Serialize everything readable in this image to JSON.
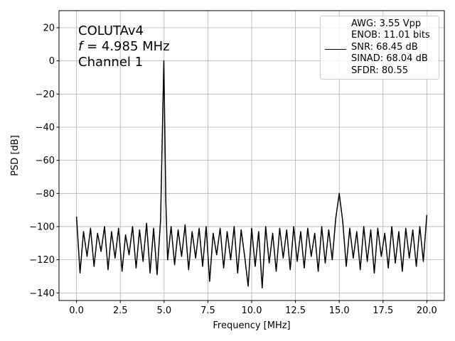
{
  "chart_data": {
    "type": "line",
    "annotation": [
      "COLUTAv4",
      "f",
      " = 4.985 MHz",
      "Channel 1"
    ],
    "xlabel": "Frequency [MHz]",
    "ylabel": "PSD [dB]",
    "xlim": [
      -1,
      21
    ],
    "ylim": [
      -144.6,
      30.3
    ],
    "xticks": [
      {
        "value": 0,
        "label": "0.0"
      },
      2.5,
      {
        "value": 5,
        "label": "5.0"
      },
      7.5,
      {
        "value": 10,
        "label": "10.0"
      },
      12.5,
      {
        "value": 15,
        "label": "15.0"
      },
      17.5,
      {
        "value": 20,
        "label": "20.0"
      }
    ],
    "yticks": [
      {
        "value": -140,
        "label": "−140"
      },
      {
        "value": -120,
        "label": "−120"
      },
      {
        "value": -100,
        "label": "−100"
      },
      {
        "value": -80,
        "label": "−80"
      },
      {
        "value": -60,
        "label": "−60"
      },
      {
        "value": -40,
        "label": "−40"
      },
      {
        "value": -20,
        "label": "−20"
      },
      0,
      20
    ],
    "grid": true,
    "legend": "upper right",
    "x": [
      0,
      0.2,
      0.4,
      0.6,
      0.8,
      1,
      1.2,
      1.4,
      1.6,
      1.8,
      2,
      2.2,
      2.4,
      2.6,
      2.8,
      3,
      3.2,
      3.4,
      3.6,
      3.8,
      4,
      4.2,
      4.4,
      4.6,
      4.8,
      4.985,
      5.1,
      5.2,
      5.4,
      5.6,
      5.8,
      6,
      6.2,
      6.4,
      6.6,
      6.8,
      7,
      7.2,
      7.4,
      7.6,
      7.8,
      8,
      8.2,
      8.4,
      8.6,
      8.8,
      9,
      9.2,
      9.4,
      9.6,
      9.8,
      10,
      10.2,
      10.4,
      10.6,
      10.8,
      11,
      11.2,
      11.4,
      11.6,
      11.8,
      12,
      12.2,
      12.4,
      12.6,
      12.8,
      13,
      13.2,
      13.4,
      13.6,
      13.8,
      14,
      14.2,
      14.4,
      14.6,
      14.8,
      15,
      15.2,
      15.4,
      15.6,
      15.8,
      16,
      16.2,
      16.4,
      16.6,
      16.8,
      17,
      17.2,
      17.4,
      17.6,
      17.8,
      18,
      18.2,
      18.4,
      18.6,
      18.8,
      19,
      19.2,
      19.4,
      19.6,
      19.8,
      20
    ],
    "series": [
      {
        "name": "AWG: 3.55 Vpp\nENOB: 11.01 bits\nSNR: 68.45 dB\nSINAD: 68.04 dB\nSFDR: 80.55",
        "color": "#000000",
        "values": [
          -94,
          -128,
          -103,
          -118,
          -101,
          -124,
          -104,
          -115,
          -100,
          -126,
          -103,
          -119,
          -101,
          -127,
          -105,
          -117,
          -100,
          -125,
          -102,
          -121,
          -98,
          -128,
          -101,
          -129,
          -96,
          0,
          -85,
          -120,
          -100,
          -123,
          -102,
          -118,
          -99,
          -126,
          -103,
          -119,
          -101,
          -124,
          -100,
          -133,
          -104,
          -117,
          -101,
          -125,
          -103,
          -120,
          -100,
          -128,
          -102,
          -118,
          -136,
          -101,
          -124,
          -103,
          -137,
          -100,
          -122,
          -104,
          -127,
          -101,
          -119,
          -102,
          -126,
          -100,
          -121,
          -103,
          -125,
          -101,
          -118,
          -104,
          -127,
          -100,
          -122,
          -102,
          -120,
          -95,
          -80,
          -97,
          -124,
          -101,
          -119,
          -103,
          -126,
          -100,
          -121,
          -102,
          -128,
          -101,
          -118,
          -104,
          -125,
          -100,
          -122,
          -103,
          -127,
          -101,
          -119,
          -102,
          -124,
          -100,
          -121,
          -93
        ]
      }
    ]
  }
}
